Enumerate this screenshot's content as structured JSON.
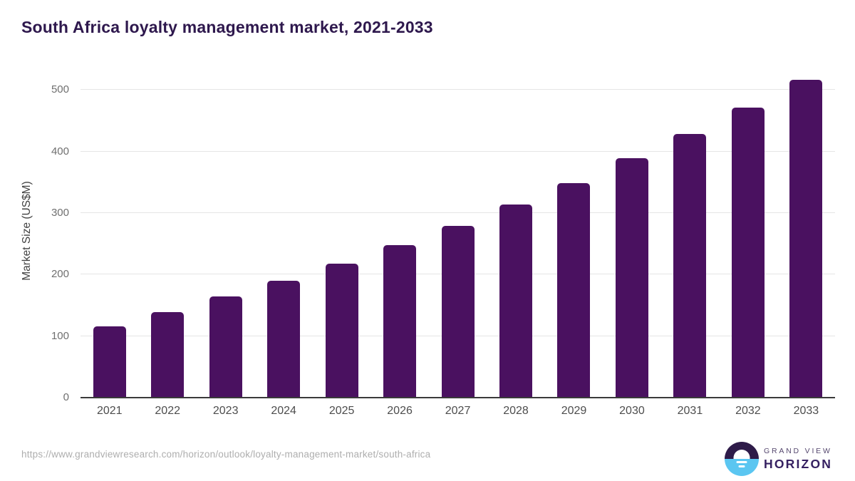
{
  "title": "South Africa loyalty management market, 2021-2033",
  "chart_data": {
    "type": "bar",
    "title": "South Africa loyalty management market, 2021-2033",
    "categories": [
      "2021",
      "2022",
      "2023",
      "2024",
      "2025",
      "2026",
      "2027",
      "2028",
      "2029",
      "2030",
      "2031",
      "2032",
      "2033"
    ],
    "values": [
      116,
      139,
      165,
      190,
      218,
      248,
      279,
      314,
      349,
      389,
      429,
      471,
      516
    ],
    "xlabel": "",
    "ylabel": "Market Size (US$M)",
    "yticks": [
      0,
      100,
      200,
      300,
      400,
      500
    ],
    "ylim": [
      0,
      500
    ],
    "grid": "horizontal-only",
    "legend": "none",
    "bar_color": "#4a1160"
  },
  "colors": {
    "title": "#2e184d",
    "bar": "#4a1160",
    "gridline": "#e5e5e5",
    "baseline": "#3a3a3a",
    "y_tick": "#6f6f6f",
    "x_tick": "#4d4d4d",
    "y_axis_title": "#404040",
    "url": "#aeaeae",
    "logo_dark": "#2e1b49",
    "logo_blue": "#5bc6f1",
    "logo_text_dark": "#352061",
    "logo_text_gray": "#55476e"
  },
  "footer": {
    "source_url": "https://www.grandviewresearch.com/horizon/outlook/loyalty-management-market/south-africa",
    "logo": {
      "line1": "GRAND VIEW",
      "line2": "HORIZON"
    }
  }
}
